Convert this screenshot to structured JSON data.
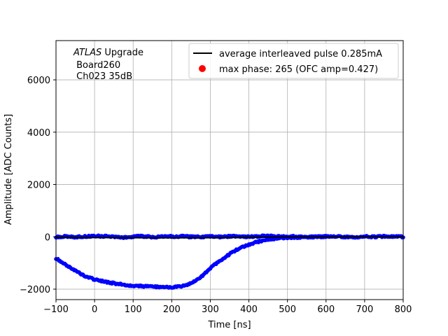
{
  "chart_data": {
    "type": "scatter",
    "xlabel": "Time [ns]",
    "ylabel": "Amplitude [ADC Counts]",
    "xlim": [
      -100,
      800
    ],
    "ylim": [
      -2400,
      7500
    ],
    "x_ticks": [
      -100,
      0,
      100,
      200,
      300,
      400,
      500,
      600,
      700,
      800
    ],
    "y_ticks": [
      -2000,
      0,
      2000,
      4000,
      6000
    ],
    "grid": true,
    "legend_position": "top-right",
    "annotation": {
      "italic": "ATLAS",
      "line1_rest": " Upgrade",
      "line2": " Board260",
      "line3": " Ch023 35dB"
    },
    "series": [
      {
        "name": "average interleaved pulse 0.285mA",
        "style": "line",
        "color": "#000000",
        "x": [
          -100,
          0,
          100,
          200,
          300,
          400,
          500,
          600,
          700,
          800
        ],
        "y": [
          -20,
          -30,
          -35,
          -40,
          -35,
          -20,
          -10,
          -5,
          0,
          0
        ]
      },
      {
        "name": "max phase: 265 (OFC amp=0.427)",
        "style": "legend-marker",
        "color": "#ff0000"
      },
      {
        "style": "points",
        "color": "#0000ff",
        "x": [
          -100,
          -80,
          -60,
          -40,
          -20,
          0,
          20,
          40,
          60,
          80,
          100,
          120,
          140,
          160,
          180,
          200,
          220,
          240,
          260,
          280,
          300,
          320,
          340,
          360,
          380,
          400,
          420,
          440,
          460,
          480,
          500,
          520,
          540,
          560,
          580,
          600
        ],
        "y": [
          -820,
          -1020,
          -1200,
          -1380,
          -1530,
          -1630,
          -1700,
          -1750,
          -1800,
          -1840,
          -1870,
          -1890,
          -1900,
          -1910,
          -1920,
          -1920,
          -1910,
          -1850,
          -1700,
          -1480,
          -1200,
          -960,
          -760,
          -560,
          -420,
          -300,
          -200,
          -130,
          -80,
          -50,
          -30,
          -20,
          -10,
          -5,
          0,
          0
        ]
      },
      {
        "style": "points",
        "color": "#0000ff",
        "x": [
          -100,
          -75,
          -50,
          -25,
          0,
          25,
          50,
          75,
          100,
          125,
          150,
          175,
          200,
          225,
          250,
          275,
          300,
          325,
          350,
          375,
          400,
          425,
          450,
          475,
          500,
          525,
          550,
          575,
          600,
          625,
          650,
          675,
          700,
          725,
          750,
          775,
          800
        ],
        "y": [
          0,
          10,
          -10,
          15,
          30,
          20,
          0,
          -20,
          10,
          20,
          -10,
          0,
          10,
          20,
          0,
          -10,
          10,
          0,
          20,
          10,
          0,
          20,
          30,
          10,
          0,
          20,
          -10,
          0,
          10,
          20,
          0,
          -10,
          10,
          0,
          20,
          10,
          0
        ]
      }
    ]
  }
}
